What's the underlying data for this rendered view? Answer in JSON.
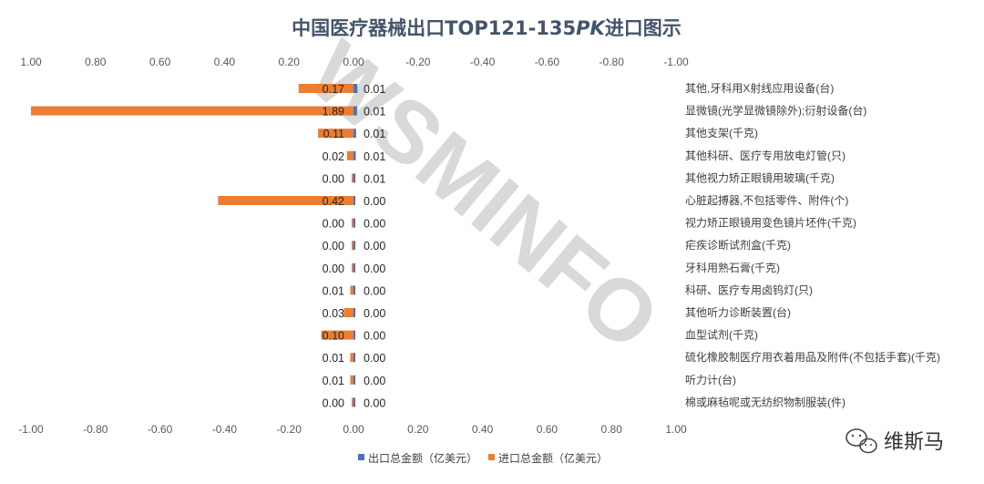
{
  "chart_data": {
    "type": "bar",
    "orientation": "horizontal",
    "title": "中国医疗器械出口TOP121-135PK进口图示",
    "title_main": "中国医疗器械出口TOP121-135",
    "title_pk": "PK",
    "title_tail": "进口图示",
    "top_axis_ticks": [
      "1.00",
      "0.80",
      "0.60",
      "0.40",
      "0.20",
      "0.00",
      "-0.20",
      "-0.40",
      "-0.60",
      "-0.80",
      "-1.00"
    ],
    "bottom_axis_ticks": [
      "-1.00",
      "-0.80",
      "-0.60",
      "-0.40",
      "-0.20",
      "0.00",
      "0.20",
      "0.40",
      "0.60",
      "0.80",
      "1.00"
    ],
    "xlim": [
      -1.0,
      1.0
    ],
    "categories": [
      "其他,牙科用X射线应用设备(台)",
      "显微镜(光学显微镜除外);衍射设备(台)",
      "其他支架(千克)",
      "其他科研、医疗专用放电灯管(只)",
      "其他视力矫正眼镜用玻璃(千克)",
      "心脏起搏器,不包括零件、附件(个)",
      "视力矫正眼镜用变色镜片坯件(千克)",
      "疟疾诊断试剂盒(千克)",
      "牙科用熟石膏(千克)",
      "科研、医疗专用卤钨灯(只)",
      "其他听力诊断装置(台)",
      "血型试剂(千克)",
      "硫化橡胶制医疗用衣着用品及附件(不包括手套)(千克)",
      "听力计(台)",
      "棉或麻毡呢或无纺织物制服装(件)"
    ],
    "series": [
      {
        "name": "出口总金额（亿美元）",
        "color": "#4472c4",
        "values": [
          0.012,
          0.011,
          0.008,
          0.007,
          0.006,
          0.004,
          0.004,
          0.002,
          0.002,
          0.002,
          0.001,
          0.001,
          0.001,
          0.001,
          0.001
        ],
        "labels": [
          "0.01",
          "0.01",
          "0.01",
          "0.01",
          "0.01",
          "0.00",
          "0.00",
          "0.00",
          "0.00",
          "0.00",
          "0.00",
          "0.00",
          "0.00",
          "0.00",
          "0.00"
        ]
      },
      {
        "name": "进口总金额（亿美元）",
        "color": "#ed7d31",
        "values": [
          0.17,
          1.89,
          0.11,
          0.02,
          0.003,
          0.42,
          0.0,
          0.0,
          0.004,
          0.01,
          0.03,
          0.1,
          0.01,
          0.01,
          0.002
        ],
        "labels": [
          "0.17",
          "1.89",
          "0.11",
          "0.02",
          "0.00",
          "0.42",
          "0.00",
          "0.00",
          "0.00",
          "0.01",
          "0.03",
          "0.10",
          "0.01",
          "0.01",
          "0.00"
        ]
      }
    ],
    "legend_position": "bottom",
    "grid": false
  },
  "watermark": "WSMINFO",
  "brand": {
    "name": "维斯马",
    "icon": "wechat-icon"
  }
}
